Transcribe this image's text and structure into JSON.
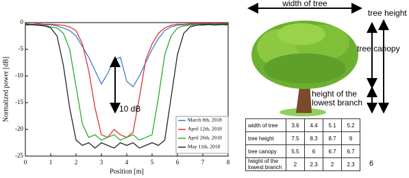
{
  "chart_data": {
    "type": "line",
    "x_label": "Position [m]",
    "y_label": "Normalized power [dB]",
    "annotation": "10 dB",
    "x": [
      0,
      0.25,
      0.5,
      0.75,
      1,
      1.25,
      1.5,
      1.75,
      2,
      2.25,
      2.5,
      2.75,
      3,
      3.25,
      3.5,
      3.75,
      4,
      4.25,
      4.5,
      4.75,
      5,
      5.25,
      5.5,
      5.75,
      6,
      6.25,
      6.5,
      6.75,
      7,
      7.25,
      7.5,
      7.75,
      8
    ],
    "series": [
      {
        "name": "March 8th, 2018",
        "color": "#3a7fc8",
        "values": [
          -0.3,
          -0.4,
          -0.3,
          -0.5,
          -0.4,
          -0.6,
          -1,
          -1.5,
          -2.5,
          -4.5,
          -6.5,
          -9,
          -11.5,
          -9.5,
          -7,
          -6.5,
          -11,
          -12,
          -10,
          -7.5,
          -5,
          -3,
          -1.5,
          -0.8,
          -0.5,
          -0.4,
          -0.3,
          -0.4,
          -0.3,
          -0.3,
          -0.4,
          -0.3,
          -0.4
        ]
      },
      {
        "name": "April 12th, 2018",
        "color": "#e03030",
        "values": [
          -0.2,
          -0.3,
          -0.2,
          -0.3,
          -0.3,
          -0.4,
          -0.5,
          -0.8,
          -1.5,
          -4,
          -9,
          -16,
          -21,
          -21.5,
          -20,
          -21,
          -21.5,
          -20.5,
          -14,
          -7,
          -4,
          -2,
          -1,
          -0.5,
          -0.3,
          -0.3,
          -0.2,
          -0.2,
          -0.2,
          -0.2,
          -0.2,
          -0.2,
          -0.2
        ]
      },
      {
        "name": "April 26th, 2018",
        "color": "#2aa82a",
        "values": [
          -0.5,
          -0.4,
          -0.5,
          -0.6,
          -0.8,
          -1,
          -2,
          -5,
          -12,
          -19,
          -21.5,
          -21,
          -22,
          -21.5,
          -21,
          -22,
          -21.5,
          -21,
          -22,
          -21.5,
          -21,
          -14,
          -6,
          -2.5,
          -1,
          -0.6,
          -0.5,
          -0.4,
          -0.5,
          -0.4,
          -0.5,
          -0.4,
          -0.5
        ]
      },
      {
        "name": "May 11th, 2018",
        "color": "#222222",
        "values": [
          -0.3,
          -0.4,
          -0.5,
          -0.6,
          -1,
          -2.5,
          -8,
          -16,
          -22,
          -23,
          -22.5,
          -23.5,
          -22.5,
          -23,
          -23.5,
          -22.5,
          -23,
          -22.5,
          -23.5,
          -23,
          -22.5,
          -23,
          -22,
          -14,
          -6,
          -2,
          -0.8,
          -0.5,
          -0.4,
          -0.3,
          -0.4,
          -0.3,
          -0.3
        ]
      }
    ],
    "xlim": [
      0,
      8
    ],
    "ylim": [
      -25,
      0
    ],
    "xticks": [
      0,
      1,
      2,
      3,
      4,
      5,
      6,
      7,
      8
    ],
    "yticks": [
      0,
      -5,
      -10,
      -15,
      -20,
      -25
    ]
  },
  "diagram": {
    "width_label": "width of tree",
    "height_label": "tree height",
    "canopy_label": "tree canopy",
    "branch_label": "height of the lowest branch"
  },
  "table": {
    "rows": [
      [
        "width of tree",
        3.6,
        4.4,
        5.1,
        5.2
      ],
      [
        "tree height",
        7.5,
        8.3,
        8.7,
        9
      ],
      [
        "tree canopy",
        5.5,
        6,
        6.7,
        6.7
      ],
      [
        "height of the lowest branch",
        2,
        2.3,
        2,
        2.3
      ]
    ]
  },
  "page_number": "6"
}
